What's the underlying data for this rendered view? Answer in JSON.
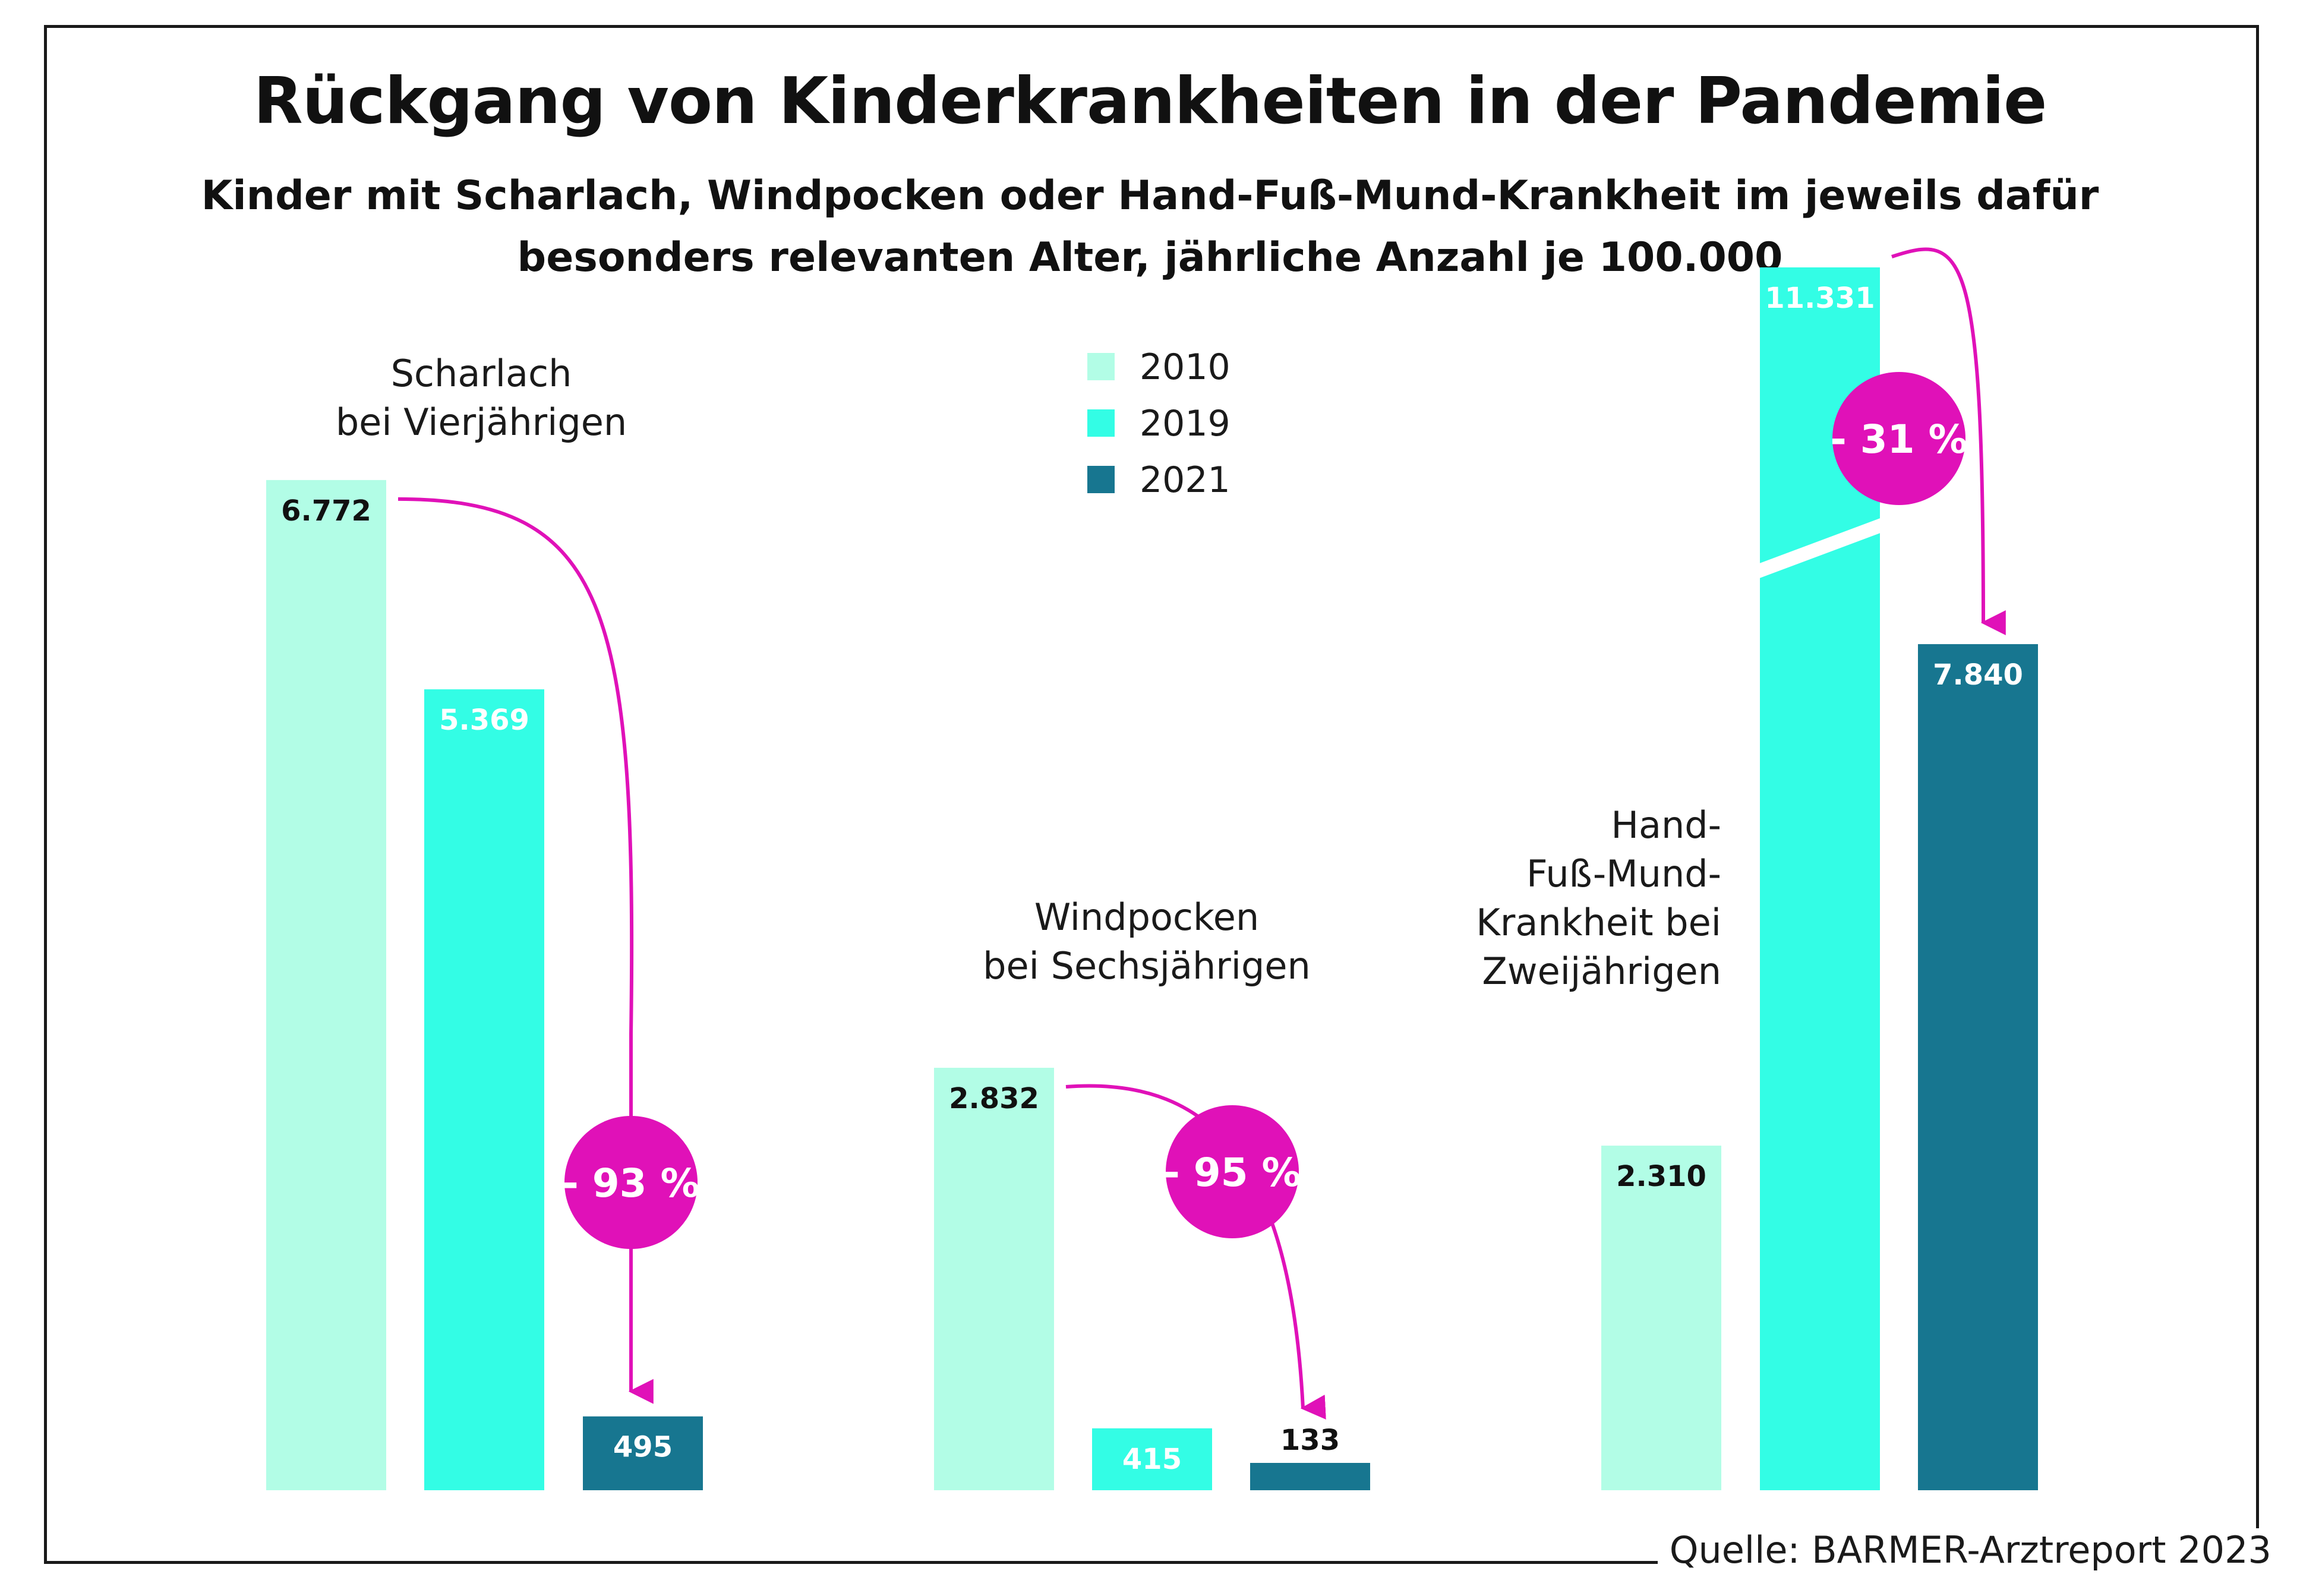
{
  "chart_data": {
    "type": "bar",
    "title": "Rückgang von Kinderkrankheiten in der Pandemie",
    "subtitle": "Kinder mit Scharlach, Windpocken oder Hand-Fuß-Mund-Krankheit im jeweils dafür besonders relevanten Alter, jährliche Anzahl je 100.000",
    "source": "Quelle: BARMER-Arztreport 2023",
    "ylabel": "",
    "xlabel": "",
    "series_names": [
      "2010",
      "2019",
      "2021"
    ],
    "colors": [
      "#b2fde6",
      "#33fde5",
      "#177690"
    ],
    "highlight_color": "#e011b8",
    "groups": [
      {
        "label_lines": [
          "Scharlach",
          "bei Vierjährigen"
        ],
        "values": [
          6772,
          5369,
          495
        ],
        "value_labels": [
          "6.772",
          "5.369",
          "495"
        ],
        "change": "- 93 %"
      },
      {
        "label_lines": [
          "Windpocken",
          "bei Sechsjährigen"
        ],
        "values": [
          2832,
          415,
          133
        ],
        "value_labels": [
          "2.832",
          "415",
          "133"
        ],
        "change": "- 95 %"
      },
      {
        "label_lines": [
          "Hand-",
          "Fuß-Mund-",
          "Krankheit bei",
          "Zweijährigen"
        ],
        "values": [
          2310,
          11331,
          7840
        ],
        "value_labels": [
          "2.310",
          "11.331",
          "7.840"
        ],
        "change": "- 31 %",
        "axis_break": true
      }
    ]
  }
}
